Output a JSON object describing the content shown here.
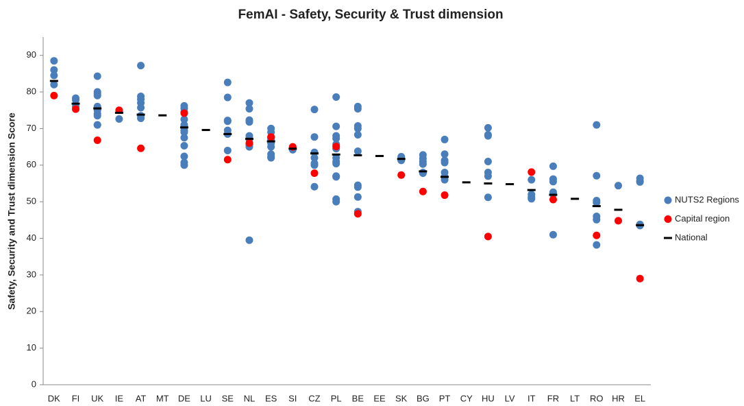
{
  "chart_data": {
    "type": "scatter",
    "title": "FemAI - Safety, Security & Trust dimension",
    "ylabel": "Safety, Security and Trust dimension Score",
    "categories": [
      "DK",
      "FI",
      "UK",
      "IE",
      "AT",
      "MT",
      "DE",
      "LU",
      "SE",
      "NL",
      "ES",
      "SI",
      "CZ",
      "PL",
      "BE",
      "EE",
      "SK",
      "BG",
      "PT",
      "CY",
      "HU",
      "LV",
      "IT",
      "FR",
      "LT",
      "RO",
      "HR",
      "EL"
    ],
    "ylim": [
      0,
      95
    ],
    "yticks": [
      0,
      10,
      20,
      30,
      40,
      50,
      60,
      70,
      80,
      90
    ],
    "grid": false,
    "legend": "right",
    "series": [
      {
        "name": "NUTS2 Regions",
        "color": "#4a7ebb",
        "marker": "circle",
        "values": [
          [
            88.5,
            86,
            84.5,
            82
          ],
          [
            78.3,
            77.8,
            76
          ],
          [
            84.3,
            80,
            79.5,
            79,
            76,
            75,
            74,
            73.5,
            71,
            71
          ],
          [
            72.6
          ],
          [
            87.2,
            78.8,
            78,
            77,
            75.7,
            73.5,
            72.8
          ],
          [],
          [
            76.2,
            75.5,
            74.5,
            72.5,
            71,
            70.5,
            69.5,
            69,
            67.5,
            65.3,
            62.4,
            60.7,
            60
          ],
          [],
          [
            82.6,
            78.5,
            72.2,
            72,
            69.5,
            68.5,
            64
          ],
          [
            77,
            75.4,
            72.3,
            71.8,
            68,
            67,
            65.5,
            65,
            39.5
          ],
          [
            70,
            69,
            67.5,
            67,
            66,
            65,
            63,
            62.3,
            62
          ],
          [
            64.8,
            64.2
          ],
          [
            75.2,
            67.7,
            63.5,
            62,
            60.5,
            60,
            54.1
          ],
          [
            78.6,
            70.6,
            68,
            67.3,
            65.7,
            64.5,
            62,
            61,
            60.4,
            57,
            56.8,
            50.7,
            50
          ],
          [
            76,
            75.4,
            70.7,
            70,
            68.3,
            63.8,
            54.5,
            54,
            51.3,
            47.3
          ],
          [],
          [
            62.3,
            61.5,
            61.3
          ],
          [
            62.8,
            61.8,
            61,
            60.3,
            58,
            57.8
          ],
          [
            67,
            63,
            61.3,
            60.7,
            58,
            56.8,
            56
          ],
          [],
          [
            70.2,
            68.3,
            68,
            61,
            58,
            57,
            51.2
          ],
          [],
          [
            56,
            52,
            51.3,
            50.8
          ],
          [
            59.7,
            56.2,
            55.5,
            52.6,
            52,
            41
          ],
          [],
          [
            71,
            57.1,
            50.3,
            49.8,
            46,
            45.1,
            38.2
          ],
          [
            54.4
          ],
          [
            56.4,
            55.7,
            55.4,
            43.8,
            43.5
          ]
        ]
      },
      {
        "name": "Capital region",
        "color": "#ff0000",
        "marker": "circle",
        "values": [
          79,
          75.3,
          66.8,
          75,
          64.6,
          null,
          74.2,
          null,
          61.5,
          66,
          67.7,
          65,
          57.8,
          65.1,
          46.7,
          null,
          57.3,
          52.8,
          51.8,
          null,
          40.5,
          null,
          58.1,
          50.6,
          null,
          40.8,
          44.8,
          29
        ]
      },
      {
        "name": "National",
        "color": "#000000",
        "marker": "dash",
        "values": [
          83,
          76.8,
          75.5,
          74.3,
          73.8,
          73.6,
          70.3,
          69.6,
          68.5,
          67.2,
          66.5,
          64.5,
          63.2,
          62.9,
          62.7,
          62.5,
          61.7,
          58.3,
          56.8,
          55.3,
          55,
          54.8,
          53.2,
          51.9,
          50.8,
          48.8,
          47.8,
          43.6
        ]
      }
    ]
  }
}
